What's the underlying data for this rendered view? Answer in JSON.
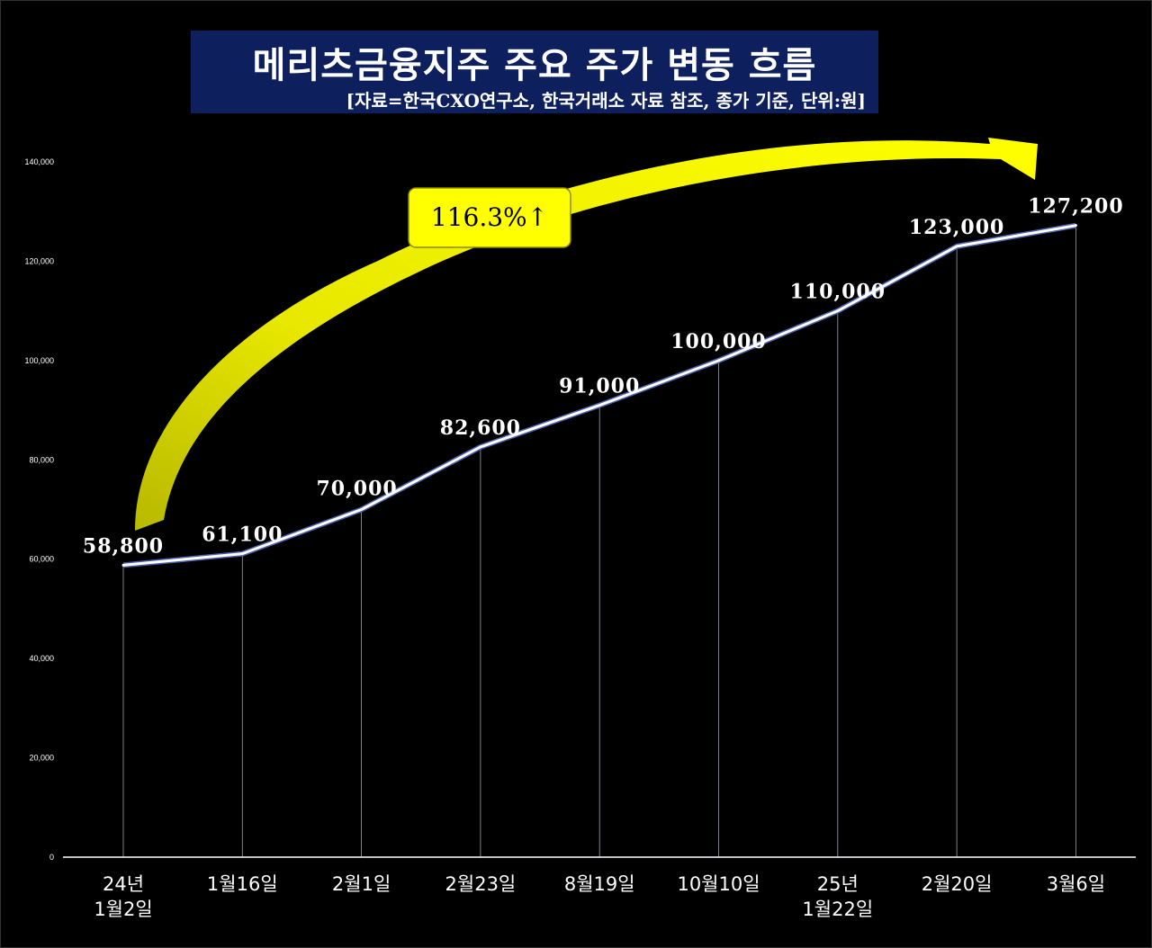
{
  "title": "메리츠금융지주 주요 주가 변동 흐름",
  "subtitle": "[자료=한국CXO연구소, 한국거래소 자료 참조, 종가 기준, 단위:원]",
  "annotation": "116.3%↑",
  "colors": {
    "background": "#000000",
    "title_box": "#0d1f5c",
    "line": "#ffffff",
    "arrow": "#ffff00",
    "badge": "#ffff00"
  },
  "chart_data": {
    "type": "line",
    "title": "메리츠금융지주 주요 주가 변동 흐름",
    "categories": [
      [
        "24년",
        "1월2일"
      ],
      [
        "1월16일"
      ],
      [
        "2월1일"
      ],
      [
        "2월23일"
      ],
      [
        "8월19일"
      ],
      [
        "10월10일"
      ],
      [
        "25년",
        "1월22일"
      ],
      [
        "2월20일"
      ],
      [
        "3월6일"
      ]
    ],
    "values": [
      58800,
      61100,
      70000,
      82600,
      91000,
      100000,
      110000,
      123000,
      127200
    ],
    "value_labels": [
      "58,800",
      "61,100",
      "70,000",
      "82,600",
      "91,000",
      "100,000",
      "110,000",
      "123,000",
      "127,200"
    ],
    "yticks": [
      0,
      20000,
      40000,
      60000,
      80000,
      100000,
      120000,
      140000
    ],
    "ytick_labels": [
      "0",
      "20,000",
      "40,000",
      "60,000",
      "80,000",
      "100,000",
      "120,000",
      "140,000"
    ],
    "ylim": [
      0,
      140000
    ],
    "xlabel": "",
    "ylabel": "",
    "grid": false,
    "drop_lines": true
  }
}
